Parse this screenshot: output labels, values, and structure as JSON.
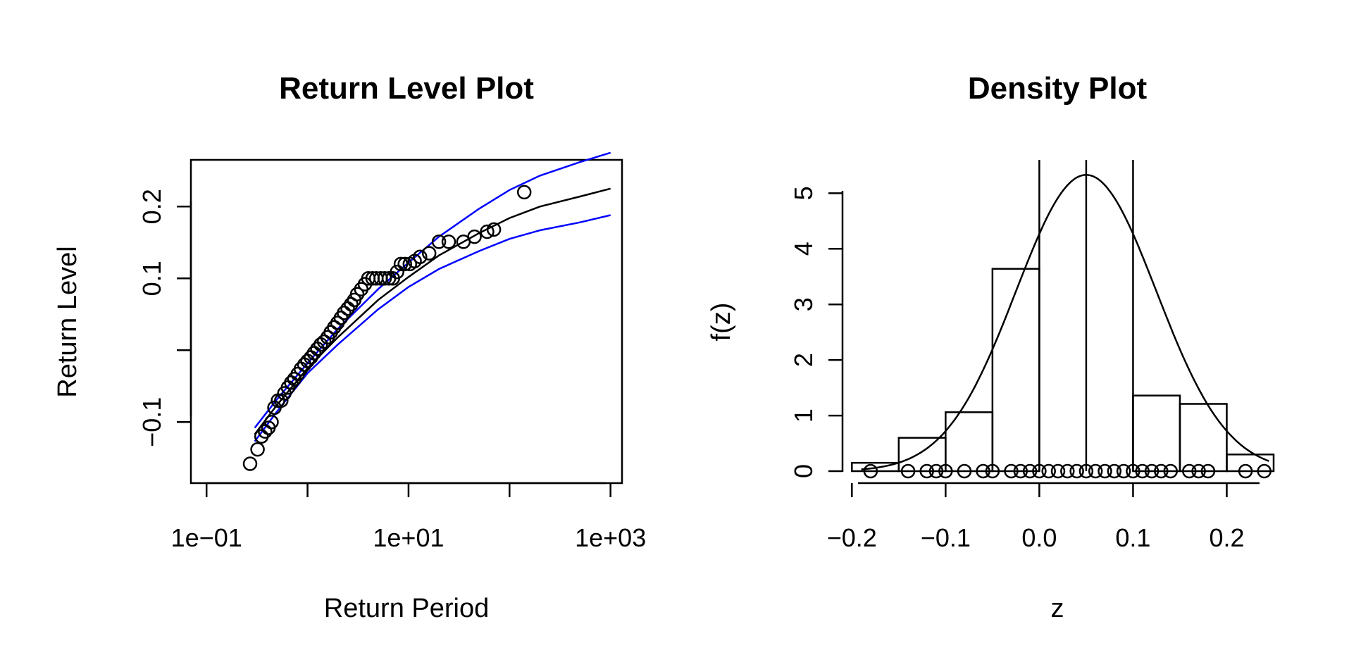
{
  "chart_data": [
    {
      "type": "scatter",
      "title": "Return Level Plot",
      "xlabel": "Return Period",
      "ylabel": "Return Level",
      "x_scale": "log",
      "xlim": [
        0.07,
        1300
      ],
      "ylim": [
        -0.185,
        0.265
      ],
      "x_ticks": [
        0.1,
        1,
        10,
        100,
        1000
      ],
      "x_tick_labels": [
        "1e−01",
        "",
        "1e+01",
        "",
        "1e+03"
      ],
      "y_ticks": [
        -0.1,
        0,
        0.1,
        0.2
      ],
      "y_tick_labels": [
        "−0.1",
        "",
        "0.1",
        "0.2"
      ],
      "grid": false,
      "colors": {
        "estimate": "#000000",
        "confidence": "#0000ff",
        "points": "#000000"
      },
      "series": [
        {
          "kind": "line",
          "color": "#000000",
          "x": [
            0.3,
            0.5,
            1,
            2,
            5,
            10,
            20,
            50,
            100,
            200,
            500,
            1000
          ],
          "y": [
            -0.117,
            -0.076,
            -0.025,
            0.018,
            0.07,
            0.102,
            0.132,
            0.163,
            0.184,
            0.2,
            0.214,
            0.225
          ]
        },
        {
          "kind": "line",
          "color": "#0000ff",
          "x": [
            0.3,
            0.5,
            1,
            2,
            5,
            10,
            20,
            50,
            100,
            200,
            500,
            1000
          ],
          "y": [
            -0.108,
            -0.068,
            -0.018,
            0.03,
            0.085,
            0.122,
            0.158,
            0.197,
            0.223,
            0.243,
            0.262,
            0.275
          ]
        },
        {
          "kind": "line",
          "color": "#0000ff",
          "x": [
            0.3,
            0.5,
            1,
            2,
            5,
            10,
            20,
            50,
            100,
            200,
            500,
            1000
          ],
          "y": [
            -0.127,
            -0.085,
            -0.032,
            0.008,
            0.057,
            0.088,
            0.113,
            0.138,
            0.155,
            0.167,
            0.178,
            0.188
          ]
        },
        {
          "kind": "points",
          "x": [
            0.27,
            0.32,
            0.35,
            0.38,
            0.41,
            0.44,
            0.47,
            0.51,
            0.55,
            0.59,
            0.64,
            0.69,
            0.74,
            0.8,
            0.86,
            0.93,
            1.0,
            1.08,
            1.16,
            1.25,
            1.35,
            1.46,
            1.58,
            1.7,
            1.84,
            1.98,
            2.14,
            2.3,
            2.5,
            2.7,
            2.9,
            3.1,
            3.4,
            3.7,
            4.0,
            4.4,
            4.8,
            5.3,
            5.8,
            6.4,
            7.0,
            7.7,
            8.4,
            9.2,
            10.3,
            11.5,
            13,
            16,
            20,
            25,
            35,
            45,
            60,
            70,
            140
          ],
          "y": [
            -0.158,
            -0.138,
            -0.12,
            -0.113,
            -0.108,
            -0.1,
            -0.08,
            -0.07,
            -0.07,
            -0.06,
            -0.052,
            -0.045,
            -0.04,
            -0.033,
            -0.026,
            -0.02,
            -0.015,
            -0.01,
            -0.004,
            0.002,
            0.008,
            0.012,
            0.018,
            0.025,
            0.032,
            0.038,
            0.045,
            0.052,
            0.058,
            0.064,
            0.07,
            0.078,
            0.085,
            0.092,
            0.1,
            0.1,
            0.1,
            0.1,
            0.1,
            0.1,
            0.1,
            0.109,
            0.12,
            0.12,
            0.12,
            0.124,
            0.13,
            0.135,
            0.151,
            0.151,
            0.151,
            0.158,
            0.165,
            0.168,
            0.22
          ]
        }
      ]
    },
    {
      "type": "histogram",
      "title": "Density Plot",
      "xlabel": "z",
      "ylabel": "f(z)",
      "xlim": [
        -0.21,
        0.25
      ],
      "ylim": [
        0,
        5.6
      ],
      "x_ticks": [
        -0.2,
        -0.1,
        0.0,
        0.1,
        0.2
      ],
      "x_tick_labels": [
        "−0.2",
        "−0.1",
        "0.0",
        "0.1",
        "0.2"
      ],
      "y_ticks": [
        0,
        1,
        2,
        3,
        4,
        5
      ],
      "y_tick_labels": [
        "0",
        "1",
        "2",
        "3",
        "4",
        "5"
      ],
      "grid": false,
      "bins": [
        {
          "x0": -0.2,
          "x1": -0.15,
          "density": 0.15
        },
        {
          "x0": -0.15,
          "x1": -0.1,
          "density": 0.6
        },
        {
          "x0": -0.1,
          "x1": -0.05,
          "density": 1.06
        },
        {
          "x0": -0.05,
          "x1": 0.0,
          "density": 3.64
        },
        {
          "x0": 0.0,
          "x1": 0.05,
          "density": 0
        },
        {
          "x0": 0.05,
          "x1": 0.1,
          "density": 0
        },
        {
          "x0": 0.1,
          "x1": 0.15,
          "density": 1.36
        },
        {
          "x0": 0.15,
          "x1": 0.2,
          "density": 1.21
        },
        {
          "x0": 0.2,
          "x1": 0.25,
          "density": 0.3
        }
      ],
      "density_curve": {
        "mean": 0.05,
        "sd": 0.075,
        "peak": 5.33
      },
      "vertical_lines": [
        0.0,
        0.05,
        0.1
      ],
      "rug_points": [
        -0.18,
        -0.14,
        -0.12,
        -0.11,
        -0.1,
        -0.08,
        -0.06,
        -0.05,
        -0.03,
        -0.02,
        -0.01,
        0.0,
        0.01,
        0.02,
        0.03,
        0.04,
        0.05,
        0.06,
        0.07,
        0.08,
        0.09,
        0.1,
        0.11,
        0.12,
        0.13,
        0.14,
        0.16,
        0.17,
        0.18,
        0.22,
        0.24
      ]
    }
  ]
}
